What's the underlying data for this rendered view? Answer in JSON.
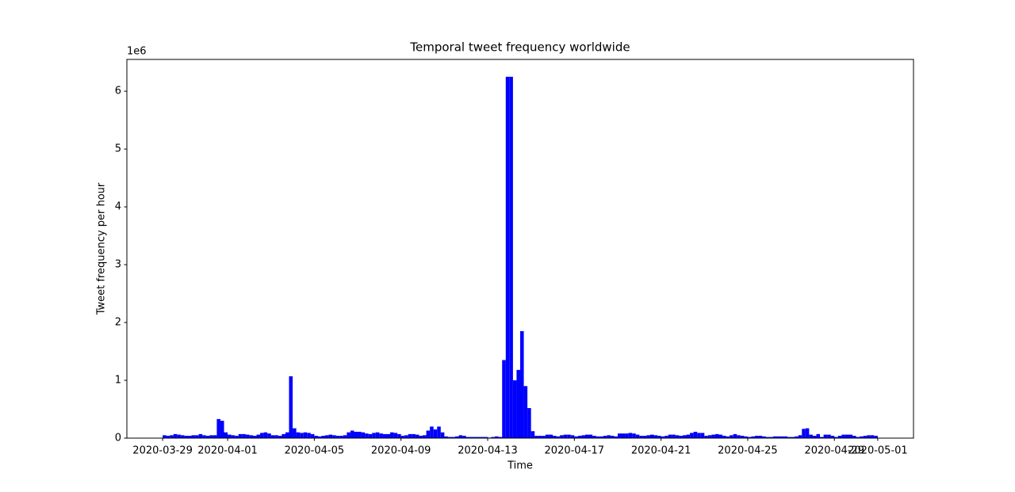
{
  "chart_data": {
    "type": "bar",
    "title": "Temporal tweet frequency worldwide",
    "xlabel": "Time",
    "ylabel": "Tweet frequency per hour",
    "y_offset_label": "1e6",
    "color": "#0000ff",
    "xlim": [
      "2020-03-27T08:24",
      "2020-05-02T15:36"
    ],
    "xticks": [
      "2020-03-29",
      "2020-04-01",
      "2020-04-05",
      "2020-04-09",
      "2020-04-13",
      "2020-04-17",
      "2020-04-21",
      "2020-04-25",
      "2020-04-29",
      "2020-05-01"
    ],
    "ylim": [
      0,
      6.55
    ],
    "yticks": [
      0,
      1,
      2,
      3,
      4,
      5,
      6
    ],
    "x": [
      "2020-03-29T00:00",
      "2020-03-29T04:00",
      "2020-03-29T08:00",
      "2020-03-29T12:00",
      "2020-03-29T16:00",
      "2020-03-29T20:00",
      "2020-03-30T00:00",
      "2020-03-30T04:00",
      "2020-03-30T08:00",
      "2020-03-30T12:00",
      "2020-03-30T16:00",
      "2020-03-30T20:00",
      "2020-03-31T00:00",
      "2020-03-31T04:00",
      "2020-03-31T08:00",
      "2020-03-31T12:00",
      "2020-03-31T16:00",
      "2020-03-31T20:00",
      "2020-04-01T00:00",
      "2020-04-01T04:00",
      "2020-04-01T08:00",
      "2020-04-01T12:00",
      "2020-04-01T16:00",
      "2020-04-01T20:00",
      "2020-04-02T00:00",
      "2020-04-02T04:00",
      "2020-04-02T08:00",
      "2020-04-02T12:00",
      "2020-04-02T16:00",
      "2020-04-02T20:00",
      "2020-04-03T00:00",
      "2020-04-03T04:00",
      "2020-04-03T08:00",
      "2020-04-03T12:00",
      "2020-04-03T16:00",
      "2020-04-03T20:00",
      "2020-04-04T00:00",
      "2020-04-04T04:00",
      "2020-04-04T08:00",
      "2020-04-04T12:00",
      "2020-04-04T16:00",
      "2020-04-04T20:00",
      "2020-04-05T00:00",
      "2020-04-05T04:00",
      "2020-04-05T08:00",
      "2020-04-05T12:00",
      "2020-04-05T16:00",
      "2020-04-05T20:00",
      "2020-04-06T00:00",
      "2020-04-06T04:00",
      "2020-04-06T08:00",
      "2020-04-06T12:00",
      "2020-04-06T16:00",
      "2020-04-06T20:00",
      "2020-04-07T00:00",
      "2020-04-07T04:00",
      "2020-04-07T08:00",
      "2020-04-07T12:00",
      "2020-04-07T16:00",
      "2020-04-07T20:00",
      "2020-04-08T00:00",
      "2020-04-08T04:00",
      "2020-04-08T08:00",
      "2020-04-08T12:00",
      "2020-04-08T16:00",
      "2020-04-08T20:00",
      "2020-04-09T00:00",
      "2020-04-09T04:00",
      "2020-04-09T08:00",
      "2020-04-09T12:00",
      "2020-04-09T16:00",
      "2020-04-09T20:00",
      "2020-04-10T00:00",
      "2020-04-10T04:00",
      "2020-04-10T08:00",
      "2020-04-10T12:00",
      "2020-04-10T16:00",
      "2020-04-10T20:00",
      "2020-04-11T00:00",
      "2020-04-11T04:00",
      "2020-04-11T08:00",
      "2020-04-11T12:00",
      "2020-04-11T16:00",
      "2020-04-11T20:00",
      "2020-04-12T00:00",
      "2020-04-12T04:00",
      "2020-04-12T08:00",
      "2020-04-12T12:00",
      "2020-04-12T16:00",
      "2020-04-12T20:00",
      "2020-04-13T00:00",
      "2020-04-13T04:00",
      "2020-04-13T08:00",
      "2020-04-13T12:00",
      "2020-04-13T16:00",
      "2020-04-13T20:00",
      "2020-04-14T00:00",
      "2020-04-14T04:00",
      "2020-04-14T08:00",
      "2020-04-14T12:00",
      "2020-04-14T16:00",
      "2020-04-14T20:00",
      "2020-04-15T00:00",
      "2020-04-15T04:00",
      "2020-04-15T08:00",
      "2020-04-15T12:00",
      "2020-04-15T16:00",
      "2020-04-15T20:00",
      "2020-04-16T00:00",
      "2020-04-16T04:00",
      "2020-04-16T08:00",
      "2020-04-16T12:00",
      "2020-04-16T16:00",
      "2020-04-16T20:00",
      "2020-04-17T00:00",
      "2020-04-17T04:00",
      "2020-04-17T08:00",
      "2020-04-17T12:00",
      "2020-04-17T16:00",
      "2020-04-17T20:00",
      "2020-04-18T00:00",
      "2020-04-18T04:00",
      "2020-04-18T08:00",
      "2020-04-18T12:00",
      "2020-04-18T16:00",
      "2020-04-18T20:00",
      "2020-04-19T00:00",
      "2020-04-19T04:00",
      "2020-04-19T08:00",
      "2020-04-19T12:00",
      "2020-04-19T16:00",
      "2020-04-19T20:00",
      "2020-04-20T00:00",
      "2020-04-20T04:00",
      "2020-04-20T08:00",
      "2020-04-20T12:00",
      "2020-04-20T16:00",
      "2020-04-20T20:00",
      "2020-04-21T00:00",
      "2020-04-21T04:00",
      "2020-04-21T08:00",
      "2020-04-21T12:00",
      "2020-04-21T16:00",
      "2020-04-21T20:00",
      "2020-04-22T00:00",
      "2020-04-22T04:00",
      "2020-04-22T08:00",
      "2020-04-22T12:00",
      "2020-04-22T16:00",
      "2020-04-22T20:00",
      "2020-04-23T00:00",
      "2020-04-23T04:00",
      "2020-04-23T08:00",
      "2020-04-23T12:00",
      "2020-04-23T16:00",
      "2020-04-23T20:00",
      "2020-04-24T00:00",
      "2020-04-24T04:00",
      "2020-04-24T08:00",
      "2020-04-24T12:00",
      "2020-04-24T16:00",
      "2020-04-24T20:00",
      "2020-04-25T00:00",
      "2020-04-25T04:00",
      "2020-04-25T08:00",
      "2020-04-25T12:00",
      "2020-04-25T16:00",
      "2020-04-25T20:00",
      "2020-04-26T00:00",
      "2020-04-26T04:00",
      "2020-04-26T08:00",
      "2020-04-26T12:00",
      "2020-04-26T16:00",
      "2020-04-26T20:00",
      "2020-04-27T00:00",
      "2020-04-27T04:00",
      "2020-04-27T08:00",
      "2020-04-27T12:00",
      "2020-04-27T16:00",
      "2020-04-27T20:00",
      "2020-04-28T00:00",
      "2020-04-28T04:00",
      "2020-04-28T08:00",
      "2020-04-28T12:00",
      "2020-04-28T16:00",
      "2020-04-28T20:00",
      "2020-04-29T00:00",
      "2020-04-29T04:00",
      "2020-04-29T08:00",
      "2020-04-29T12:00",
      "2020-04-29T16:00",
      "2020-04-29T20:00",
      "2020-04-30T00:00",
      "2020-04-30T04:00",
      "2020-04-30T08:00",
      "2020-04-30T12:00",
      "2020-04-30T16:00",
      "2020-04-30T20:00"
    ],
    "values": [
      0.05,
      0.04,
      0.05,
      0.07,
      0.06,
      0.05,
      0.04,
      0.04,
      0.05,
      0.05,
      0.07,
      0.05,
      0.04,
      0.05,
      0.05,
      0.33,
      0.3,
      0.1,
      0.06,
      0.05,
      0.04,
      0.07,
      0.07,
      0.06,
      0.05,
      0.04,
      0.06,
      0.09,
      0.1,
      0.08,
      0.05,
      0.05,
      0.04,
      0.07,
      0.1,
      1.07,
      0.17,
      0.1,
      0.09,
      0.1,
      0.09,
      0.07,
      0.04,
      0.03,
      0.04,
      0.05,
      0.06,
      0.05,
      0.04,
      0.04,
      0.05,
      0.1,
      0.13,
      0.11,
      0.11,
      0.1,
      0.08,
      0.07,
      0.09,
      0.1,
      0.08,
      0.07,
      0.07,
      0.1,
      0.09,
      0.07,
      0.04,
      0.05,
      0.07,
      0.07,
      0.06,
      0.04,
      0.05,
      0.13,
      0.2,
      0.15,
      0.2,
      0.1,
      0.03,
      0.02,
      0.02,
      0.03,
      0.05,
      0.04,
      0.02,
      0.02,
      0.02,
      0.02,
      0.02,
      0.02,
      0.01,
      0.02,
      0.03,
      0.02,
      1.35,
      6.25,
      6.25,
      1.0,
      1.18,
      1.85,
      0.9,
      0.52,
      0.12,
      0.04,
      0.04,
      0.04,
      0.06,
      0.06,
      0.04,
      0.03,
      0.05,
      0.06,
      0.06,
      0.05,
      0.03,
      0.04,
      0.05,
      0.06,
      0.06,
      0.04,
      0.03,
      0.03,
      0.04,
      0.05,
      0.04,
      0.03,
      0.08,
      0.08,
      0.08,
      0.09,
      0.08,
      0.06,
      0.04,
      0.04,
      0.05,
      0.06,
      0.05,
      0.04,
      0.03,
      0.04,
      0.06,
      0.06,
      0.05,
      0.04,
      0.05,
      0.06,
      0.09,
      0.11,
      0.09,
      0.09,
      0.04,
      0.05,
      0.06,
      0.07,
      0.06,
      0.04,
      0.03,
      0.05,
      0.07,
      0.05,
      0.04,
      0.03,
      0.02,
      0.03,
      0.04,
      0.04,
      0.03,
      0.02,
      0.02,
      0.03,
      0.03,
      0.03,
      0.03,
      0.02,
      0.02,
      0.03,
      0.05,
      0.16,
      0.17,
      0.06,
      0.04,
      0.07,
      0.02,
      0.06,
      0.06,
      0.04,
      0.02,
      0.04,
      0.06,
      0.06,
      0.06,
      0.04,
      0.02,
      0.03,
      0.04,
      0.05,
      0.05,
      0.04
    ]
  }
}
